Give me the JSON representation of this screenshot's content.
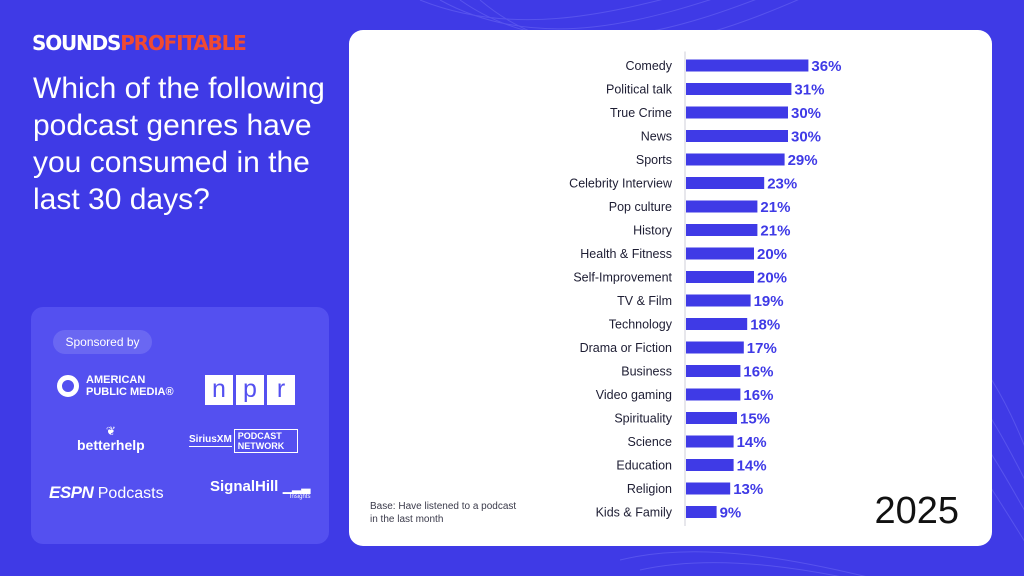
{
  "brand": {
    "part1": "SOUNDS",
    "part2": "PROFITABLE"
  },
  "question": "Which of the following podcast genres have you consumed in the last 30 days?",
  "sponsors": {
    "label": "Sponsored by",
    "apm": "AMERICAN PUBLIC MEDIA®",
    "npr": [
      "n",
      "p",
      "r"
    ],
    "betterhelp": "betterhelp",
    "siriusxm": "SiriusXM",
    "podcast_network": "PODCAST NETWORK",
    "espn": "ESPN",
    "espn_podcasts": "Podcasts",
    "signalhill": "SignalHill",
    "signalhill_sub": "Insights"
  },
  "base_note": "Base: Have listened to a podcast in the last month",
  "year": "2025",
  "colors": {
    "background": "#3f3ae6",
    "bar": "#3f3ae6",
    "accent": "#f04a32",
    "card": "#ffffff"
  },
  "chart_data": {
    "type": "bar",
    "orientation": "horizontal",
    "categories": [
      "Comedy",
      "Political talk",
      "True Crime",
      "News",
      "Sports",
      "Celebrity Interview",
      "Pop culture",
      "History",
      "Health & Fitness",
      "Self-Improvement",
      "TV & Film",
      "Technology",
      "Drama or Fiction",
      "Business",
      "Video gaming",
      "Spirituality",
      "Science",
      "Education",
      "Religion",
      "Kids & Family"
    ],
    "values": [
      36,
      31,
      30,
      30,
      29,
      23,
      21,
      21,
      20,
      20,
      19,
      18,
      17,
      16,
      16,
      15,
      14,
      14,
      13,
      9
    ],
    "value_labels": [
      "36%",
      "31%",
      "30%",
      "30%",
      "29%",
      "23%",
      "21%",
      "21%",
      "20%",
      "20%",
      "19%",
      "18%",
      "17%",
      "16%",
      "16%",
      "15%",
      "14%",
      "14%",
      "13%",
      "9%"
    ],
    "unit": "%",
    "grid": false,
    "legend": "none"
  }
}
